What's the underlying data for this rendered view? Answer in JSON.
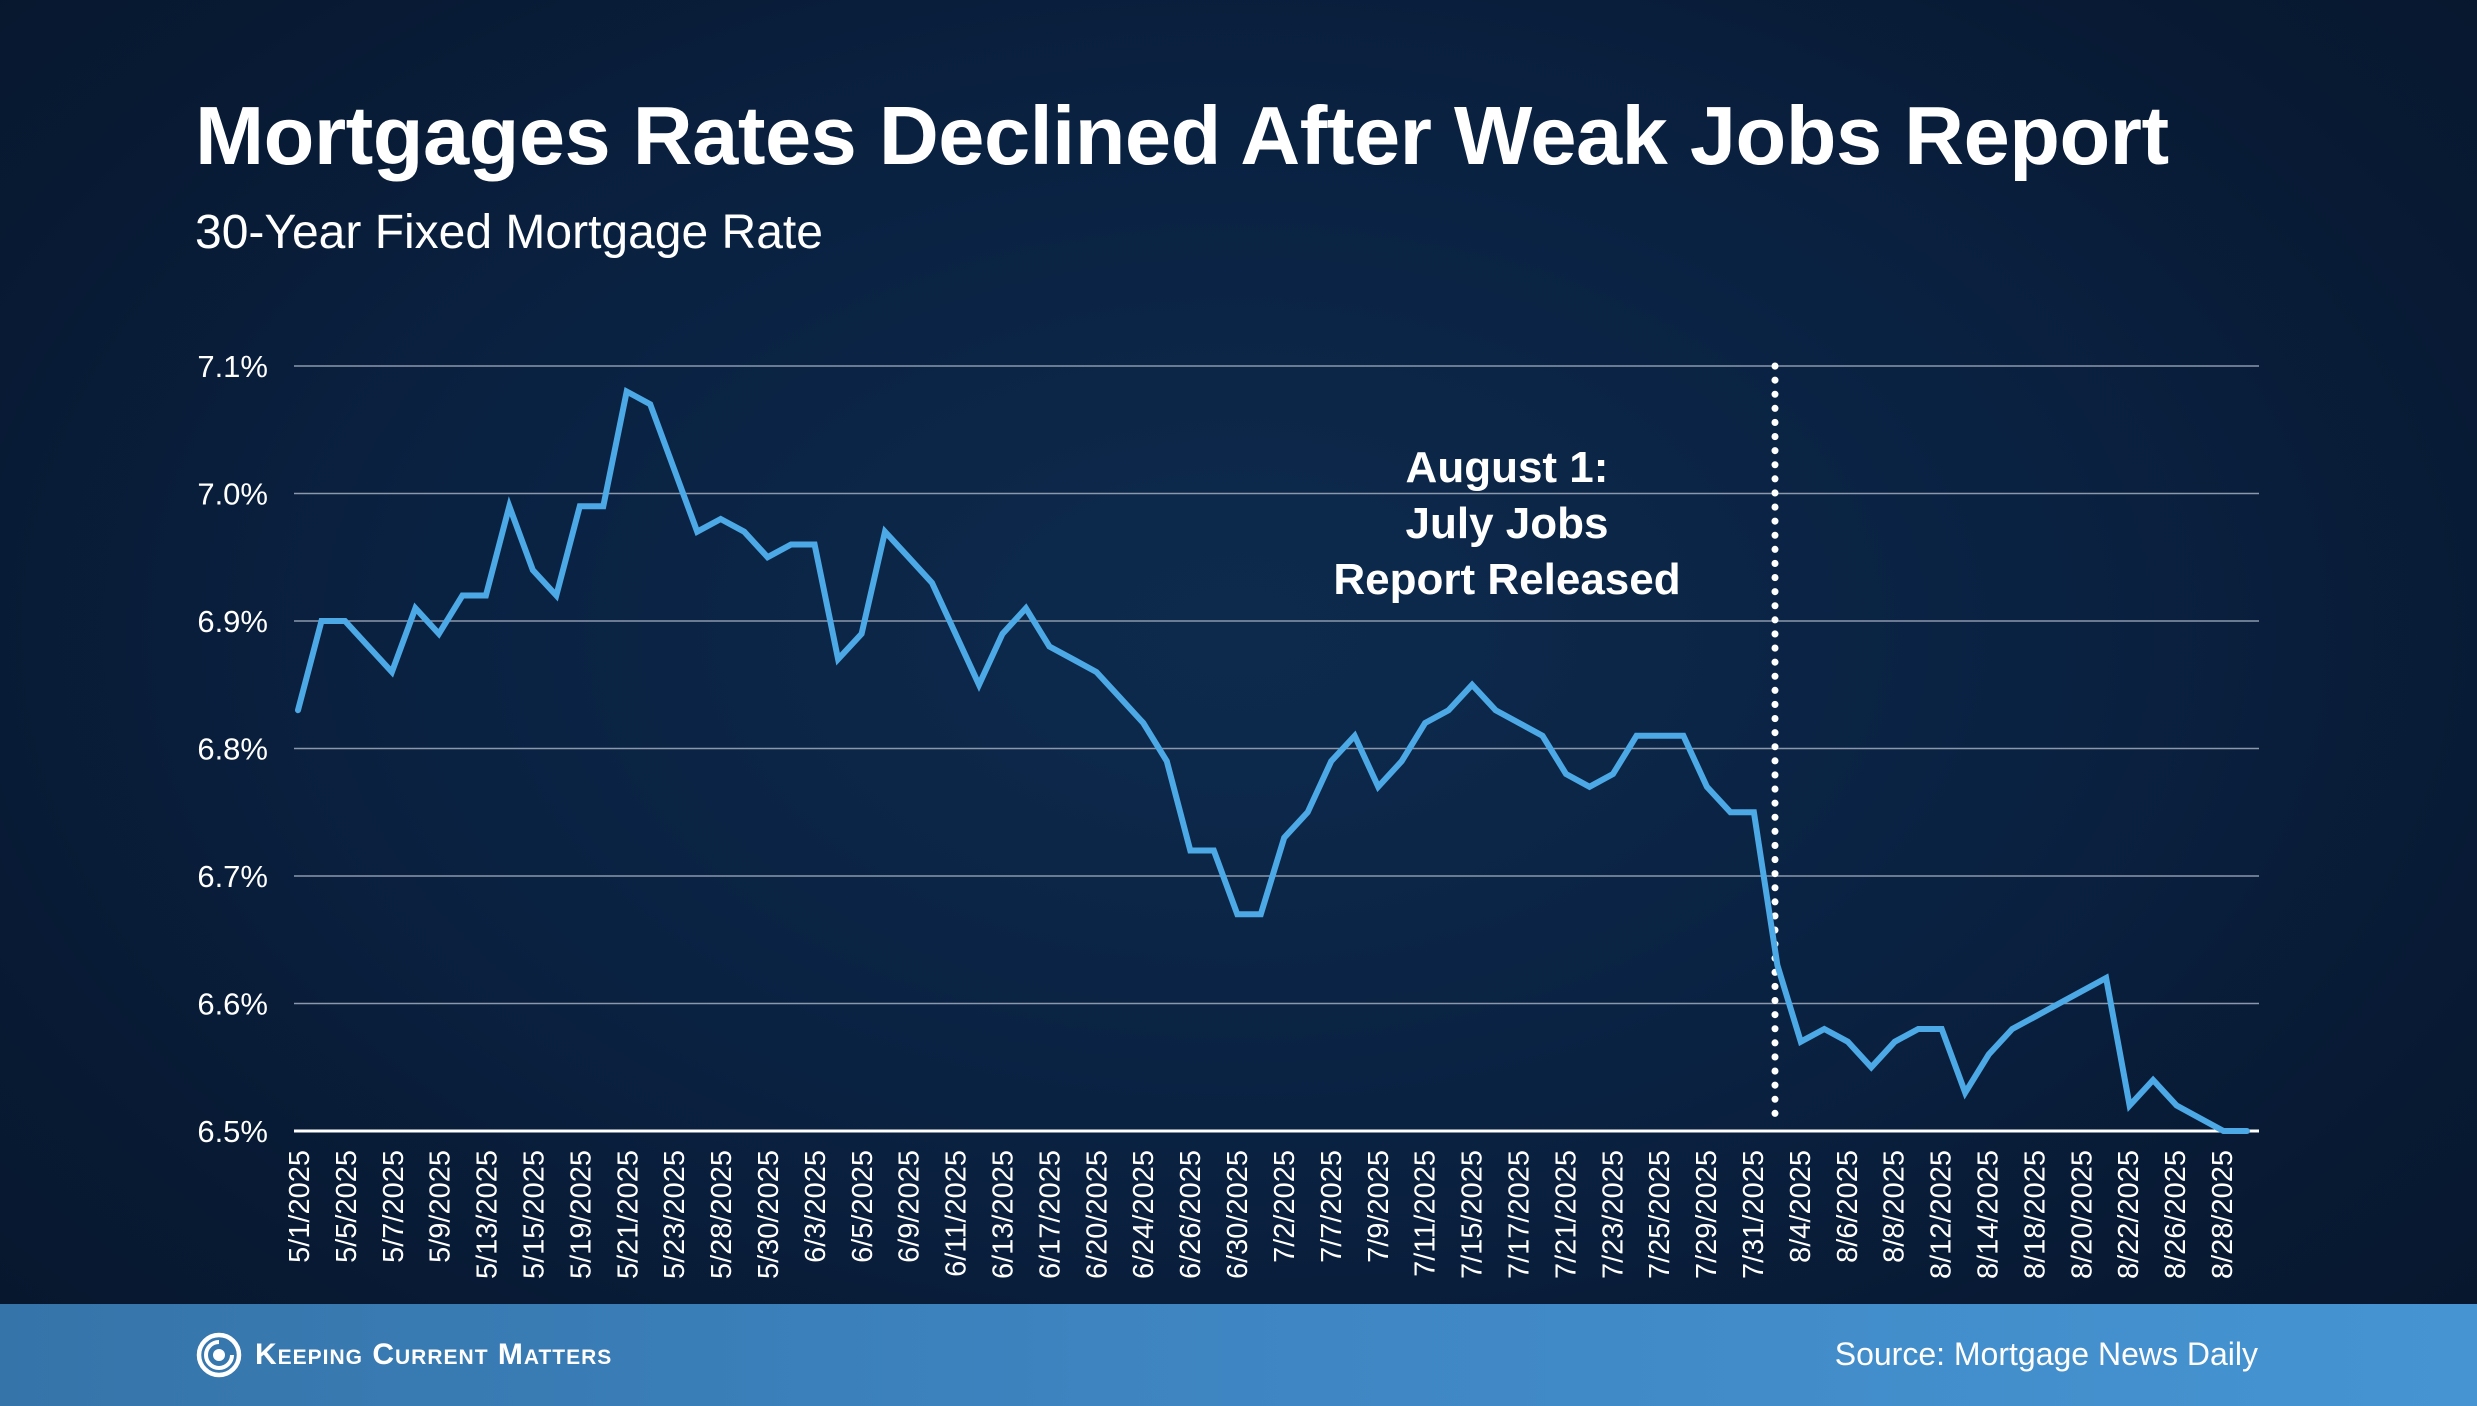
{
  "title": "Mortgages Rates Declined After Weak Jobs Report",
  "subtitle": "30-Year Fixed Mortgage Rate",
  "footer": {
    "brand": "Keeping Current Matters",
    "source": "Source: Mortgage News Daily"
  },
  "colors": {
    "line": "#4ca9e6",
    "grid": "#8b98ab",
    "text": "#ffffff"
  },
  "chart_data": {
    "type": "line",
    "title": "Mortgages Rates Declined After Weak Jobs Report",
    "subtitle": "30-Year Fixed Mortgage Rate",
    "xlabel": "",
    "ylabel": "",
    "ylim": [
      6.5,
      7.1
    ],
    "yticks": [
      6.5,
      6.6,
      6.7,
      6.8,
      6.9,
      7.0,
      7.1
    ],
    "ytick_labels": [
      "6.5%",
      "6.6%",
      "6.7%",
      "6.8%",
      "6.9%",
      "7.0%",
      "7.1%"
    ],
    "grid": true,
    "xtick_labels": [
      "5/1/2025",
      "5/5/2025",
      "5/7/2025",
      "5/9/2025",
      "5/13/2025",
      "5/15/2025",
      "5/19/2025",
      "5/21/2025",
      "5/23/2025",
      "5/28/2025",
      "5/30/2025",
      "6/3/2025",
      "6/5/2025",
      "6/9/2025",
      "6/11/2025",
      "6/13/2025",
      "6/17/2025",
      "6/20/2025",
      "6/24/2025",
      "6/26/2025",
      "6/30/2025",
      "7/2/2025",
      "7/7/2025",
      "7/9/2025",
      "7/11/2025",
      "7/15/2025",
      "7/17/2025",
      "7/21/2025",
      "7/23/2025",
      "7/25/2025",
      "7/29/2025",
      "7/31/2025",
      "8/4/2025",
      "8/6/2025",
      "8/8/2025",
      "8/12/2025",
      "8/14/2025",
      "8/18/2025",
      "8/20/2025",
      "8/22/2025",
      "8/26/2025",
      "8/28/2025"
    ],
    "values": [
      6.83,
      6.9,
      6.9,
      6.88,
      6.86,
      6.91,
      6.89,
      6.92,
      6.92,
      6.99,
      6.94,
      6.92,
      6.99,
      6.99,
      7.08,
      7.07,
      7.02,
      6.97,
      6.98,
      6.97,
      6.95,
      6.96,
      6.96,
      6.87,
      6.89,
      6.97,
      6.95,
      6.93,
      6.89,
      6.85,
      6.89,
      6.91,
      6.88,
      6.87,
      6.86,
      6.84,
      6.82,
      6.79,
      6.72,
      6.72,
      6.67,
      6.67,
      6.73,
      6.75,
      6.79,
      6.81,
      6.77,
      6.79,
      6.82,
      6.83,
      6.85,
      6.83,
      6.82,
      6.81,
      6.78,
      6.77,
      6.78,
      6.81,
      6.81,
      6.81,
      6.77,
      6.75,
      6.75,
      6.63,
      6.57,
      6.58,
      6.57,
      6.55,
      6.57,
      6.58,
      6.58,
      6.53,
      6.56,
      6.58,
      6.59,
      6.6,
      6.61,
      6.62,
      6.52,
      6.54,
      6.52,
      6.51,
      6.5,
      6.5
    ],
    "annotation": {
      "lines": [
        "August 1:",
        "July Jobs",
        "Report Released"
      ],
      "marker": "7/31/2025"
    }
  }
}
